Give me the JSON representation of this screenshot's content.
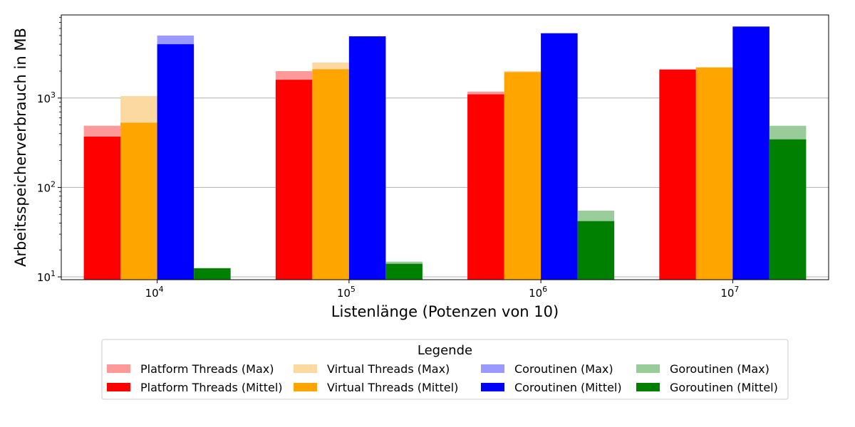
{
  "chart_data": {
    "type": "bar",
    "xlabel": "Listenlänge (Potenzen von 10)",
    "ylabel": "Arbeitsspeicherverbrauch in MB",
    "yscale": "log",
    "ylim": [
      9.3,
      8500
    ],
    "grid": "y-major",
    "categories": [
      {
        "base": "10",
        "exp": "4"
      },
      {
        "base": "10",
        "exp": "5"
      },
      {
        "base": "10",
        "exp": "6"
      },
      {
        "base": "10",
        "exp": "7"
      }
    ],
    "y_ticks": [
      {
        "value": 10,
        "base": "10",
        "exp": "1"
      },
      {
        "value": 100,
        "base": "10",
        "exp": "2"
      },
      {
        "value": 1000,
        "base": "10",
        "exp": "3"
      }
    ],
    "groups": [
      {
        "max_name": "Platform Threads (Max)",
        "mean_name": "Platform Threads (Mittel)",
        "max_color": "#ff9999",
        "mean_color": "#ff0000",
        "max": [
          490,
          2000,
          1180,
          2100
        ],
        "mean": [
          370,
          1600,
          1100,
          2080
        ]
      },
      {
        "max_name": "Virtual Threads (Max)",
        "mean_name": "Virtual Threads (Mittel)",
        "max_color": "#fcd9a0",
        "mean_color": "#ffa500",
        "max": [
          1050,
          2500,
          2000,
          2200
        ],
        "mean": [
          530,
          2100,
          1950,
          2200
        ]
      },
      {
        "max_name": "Coroutinen (Max)",
        "mean_name": "Coroutinen (Mittel)",
        "max_color": "#9999ff",
        "mean_color": "#0000ff",
        "max": [
          5000,
          4900,
          5300,
          6300
        ],
        "mean": [
          4000,
          4900,
          5300,
          6300
        ]
      },
      {
        "max_name": "Goroutinen (Max)",
        "mean_name": "Goroutinen (Mittel)",
        "max_color": "#99cc99",
        "mean_color": "#008000",
        "max": [
          12.5,
          14.8,
          55,
          490
        ],
        "mean": [
          12.5,
          14,
          42,
          345
        ]
      }
    ],
    "legend": {
      "title": "Legende",
      "placement": "below-center",
      "entries": [
        {
          "label": "Platform Threads (Max)",
          "color": "#ff9999"
        },
        {
          "label": "Platform Threads (Mittel)",
          "color": "#ff0000"
        },
        {
          "label": "Virtual Threads (Max)",
          "color": "#fcd9a0"
        },
        {
          "label": "Virtual Threads (Mittel)",
          "color": "#ffa500"
        },
        {
          "label": "Coroutinen (Max)",
          "color": "#9999ff"
        },
        {
          "label": "Coroutinen (Mittel)",
          "color": "#0000ff"
        },
        {
          "label": "Goroutinen (Max)",
          "color": "#99cc99"
        },
        {
          "label": "Goroutinen (Mittel)",
          "color": "#008000"
        }
      ]
    }
  }
}
